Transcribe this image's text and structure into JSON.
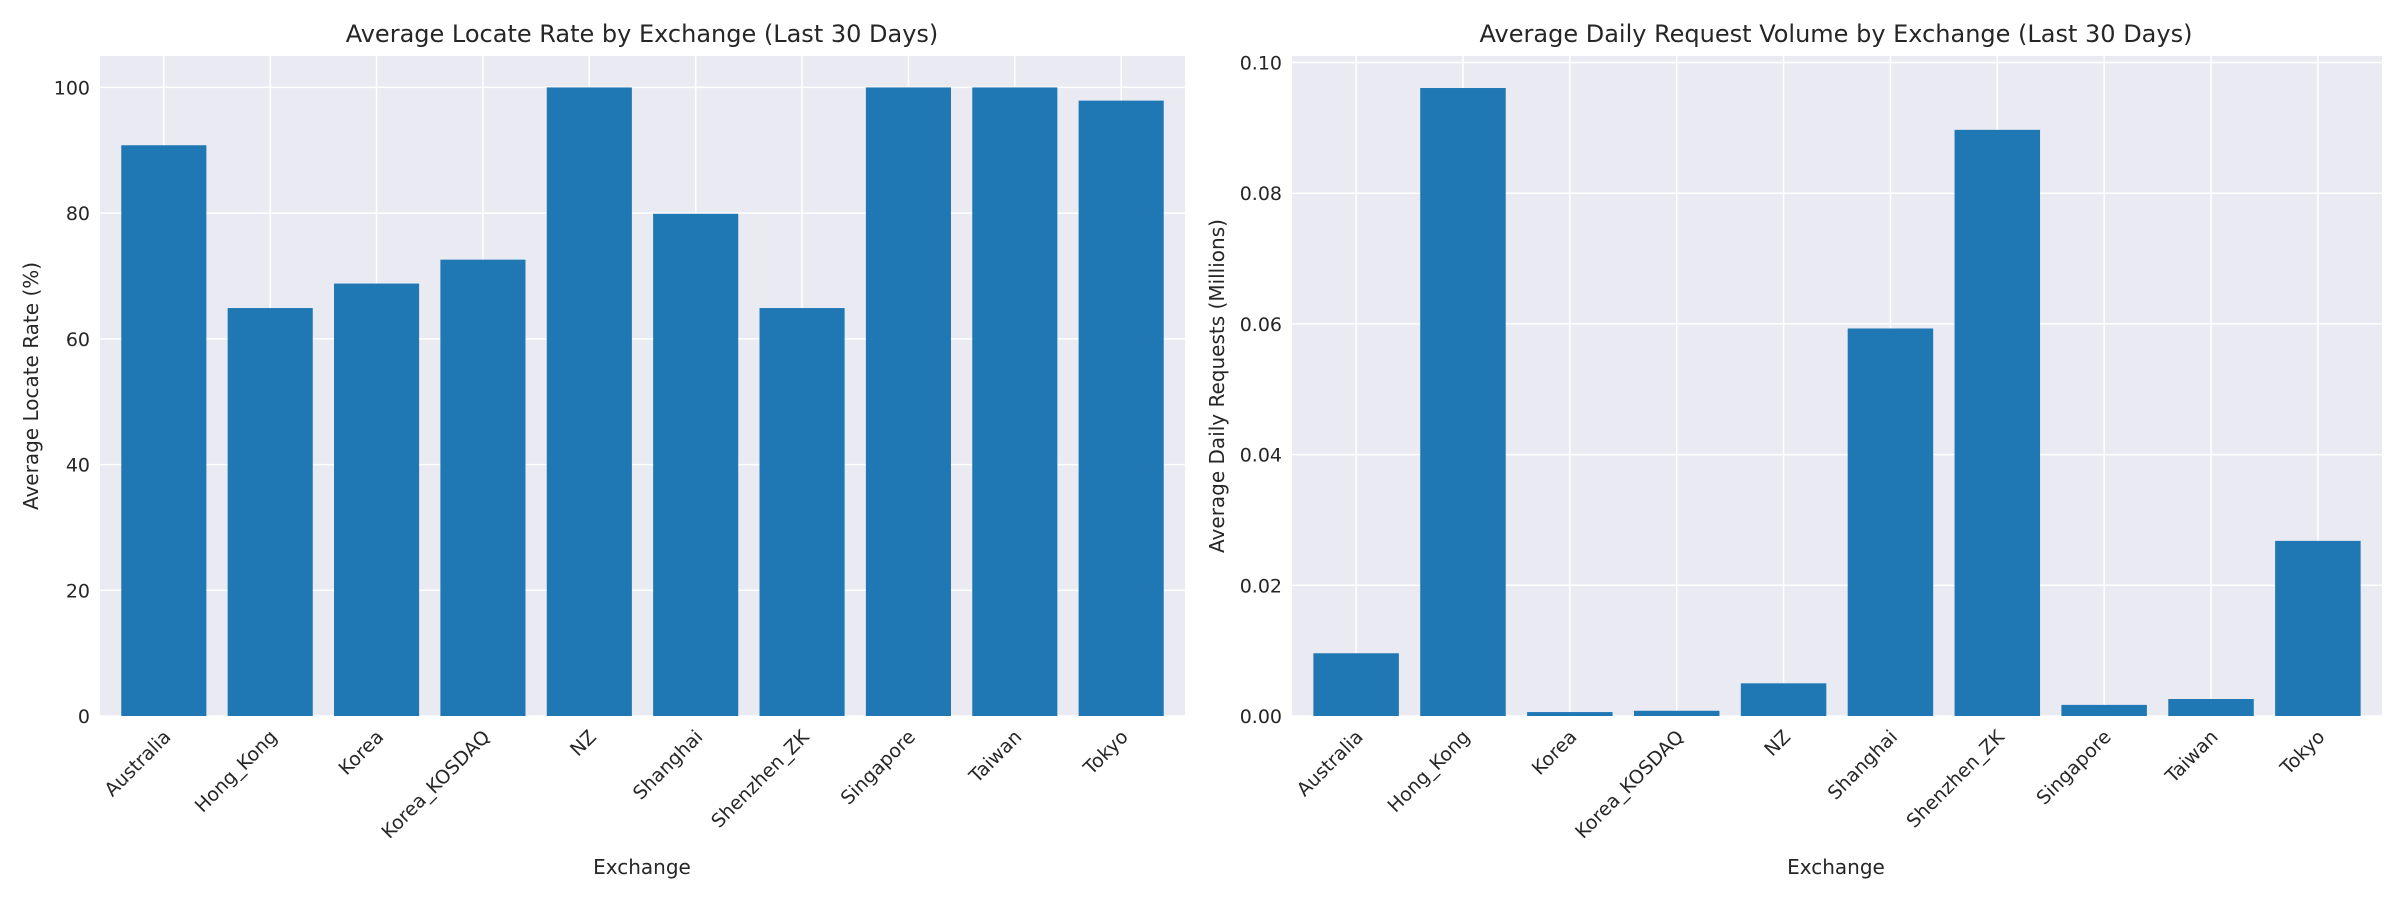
{
  "chart_data": [
    {
      "type": "bar",
      "title": "Average Locate Rate by Exchange (Last 30 Days)",
      "xlabel": "Exchange",
      "ylabel": "Average Locate Rate (%)",
      "categories": [
        "Australia",
        "Hong_Kong",
        "Korea",
        "Korea_KOSDAQ",
        "NZ",
        "Shanghai",
        "Shenzhen_ZK",
        "Singapore",
        "Taiwan",
        "Tokyo"
      ],
      "values": [
        90.8,
        64.9,
        68.8,
        72.6,
        100.0,
        79.9,
        64.9,
        100.0,
        100.0,
        97.9
      ],
      "ylim": [
        0,
        105
      ],
      "yticks": [
        0,
        20,
        40,
        60,
        80,
        100
      ],
      "ytick_labels": [
        "0",
        "20",
        "40",
        "60",
        "80",
        "100"
      ],
      "grid": true,
      "color": "#1f77b4"
    },
    {
      "type": "bar",
      "title": "Average Daily Request Volume by Exchange (Last 30 Days)",
      "xlabel": "Exchange",
      "ylabel": "Average Daily Requests (Millions)",
      "categories": [
        "Australia",
        "Hong_Kong",
        "Korea",
        "Korea_KOSDAQ",
        "NZ",
        "Shanghai",
        "Shenzhen_ZK",
        "Singapore",
        "Taiwan",
        "Tokyo"
      ],
      "values": [
        0.0096,
        0.0961,
        0.0006,
        0.0008,
        0.005,
        0.0593,
        0.0897,
        0.0017,
        0.0026,
        0.0268
      ],
      "ylim": [
        0,
        0.101
      ],
      "yticks": [
        0,
        0.02,
        0.04,
        0.06,
        0.08,
        0.1
      ],
      "ytick_labels": [
        "0.00",
        "0.02",
        "0.04",
        "0.06",
        "0.08",
        "0.10"
      ],
      "grid": true,
      "color": "#1f77b4"
    }
  ]
}
